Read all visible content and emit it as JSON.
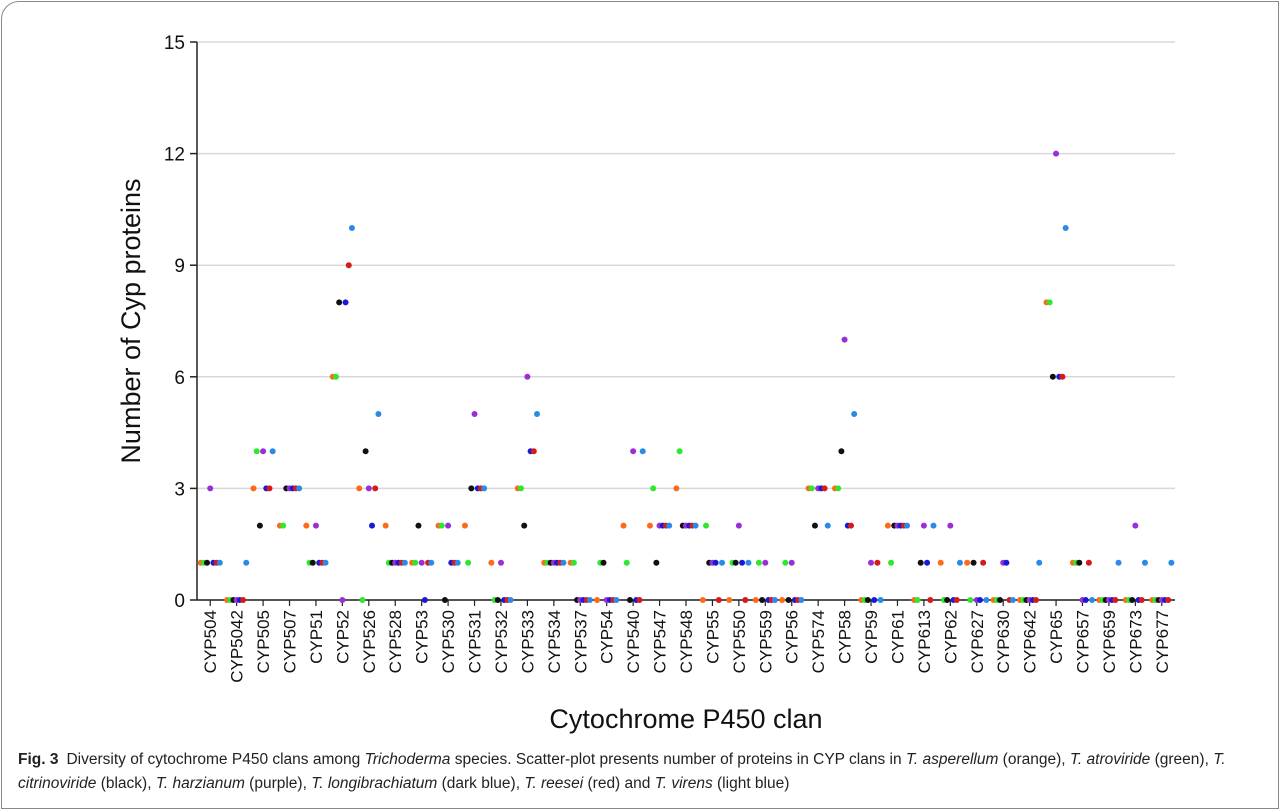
{
  "chart_data": {
    "type": "scatter",
    "ylabel": "Number of Cyp proteins",
    "xlabel": "Cytochrome P450 clan",
    "ylim": [
      0,
      15
    ],
    "yticks": [
      0,
      3,
      6,
      9,
      12,
      15
    ],
    "grid": true,
    "categories": [
      "CYP504",
      "CYP5042",
      "CYP505",
      "CYP507",
      "CYP51",
      "CYP52",
      "CYP526",
      "CYP528",
      "CYP53",
      "CYP530",
      "CYP531",
      "CYP532",
      "CYP533",
      "CYP534",
      "CYP537",
      "CYP54",
      "CYP540",
      "CYP547",
      "CYP548",
      "CYP55",
      "CYP550",
      "CYP559",
      "CYP56",
      "CYP574",
      "CYP58",
      "CYP59",
      "CYP61",
      "CYP613",
      "CYP62",
      "CYP627",
      "CYP630",
      "CYP642",
      "CYP65",
      "CYP657",
      "CYP659",
      "CYP673",
      "CYP677"
    ],
    "series": [
      {
        "name": "T. asperellum",
        "color": "#ff6a1a",
        "values": [
          1,
          0,
          3,
          2,
          2,
          6,
          3,
          2,
          1,
          2,
          2,
          1,
          3,
          1,
          1,
          0,
          2,
          2,
          3,
          0,
          0,
          0,
          0,
          3,
          3,
          0,
          2,
          0,
          1,
          1,
          0,
          0,
          8,
          1,
          0,
          0,
          0
        ]
      },
      {
        "name": "T. atroviride",
        "color": "#2ee82e",
        "values": [
          1,
          0,
          4,
          2,
          1,
          6,
          0,
          1,
          1,
          2,
          1,
          0,
          3,
          1,
          1,
          1,
          1,
          3,
          4,
          2,
          1,
          1,
          1,
          3,
          3,
          0,
          1,
          0,
          0,
          0,
          0,
          0,
          8,
          1,
          0,
          0,
          0
        ]
      },
      {
        "name": "T. citrinoviride",
        "color": "#111111",
        "values": [
          1,
          0,
          2,
          3,
          1,
          8,
          4,
          1,
          2,
          0,
          3,
          0,
          2,
          1,
          0,
          1,
          0,
          1,
          2,
          1,
          1,
          0,
          0,
          2,
          4,
          0,
          2,
          1,
          0,
          1,
          0,
          0,
          6,
          1,
          0,
          0,
          0
        ]
      },
      {
        "name": "T. harzianum",
        "color": "#9b2fd6",
        "values": [
          3,
          0,
          4,
          3,
          2,
          0,
          3,
          1,
          1,
          2,
          5,
          1,
          6,
          1,
          0,
          0,
          4,
          2,
          2,
          1,
          2,
          1,
          1,
          3,
          7,
          1,
          2,
          2,
          2,
          0,
          1,
          0,
          12,
          0,
          0,
          2,
          0
        ]
      },
      {
        "name": "T. longibrachiatum",
        "color": "#1a1ad6",
        "values": [
          1,
          0,
          3,
          3,
          1,
          8,
          2,
          1,
          0,
          1,
          3,
          0,
          4,
          1,
          0,
          0,
          0,
          2,
          2,
          1,
          1,
          0,
          0,
          3,
          2,
          0,
          2,
          1,
          0,
          0,
          1,
          0,
          6,
          0,
          0,
          0,
          0
        ]
      },
      {
        "name": "T. reesei",
        "color": "#d61a1a",
        "values": [
          1,
          0,
          3,
          3,
          1,
          9,
          3,
          1,
          1,
          1,
          3,
          0,
          4,
          1,
          0,
          0,
          0,
          2,
          2,
          0,
          0,
          0,
          0,
          3,
          2,
          1,
          2,
          0,
          0,
          1,
          0,
          0,
          6,
          1,
          0,
          0,
          0
        ]
      },
      {
        "name": "T. virens",
        "color": "#2a8ae8",
        "values": [
          1,
          1,
          4,
          3,
          1,
          10,
          5,
          1,
          1,
          1,
          3,
          0,
          5,
          1,
          0,
          0,
          4,
          2,
          2,
          1,
          1,
          0,
          0,
          2,
          5,
          0,
          2,
          2,
          1,
          0,
          0,
          1,
          10,
          0,
          1,
          1,
          1
        ]
      }
    ]
  },
  "caption": {
    "label": "Fig. 3",
    "parts": [
      {
        "text": "Diversity of cytochrome P450 clans among ",
        "italic": false
      },
      {
        "text": "Trichoderma",
        "italic": true
      },
      {
        "text": " species. Scatter-plot presents number of proteins in CYP clans in ",
        "italic": false
      },
      {
        "text": "T. asperellum",
        "italic": true
      },
      {
        "text": " (orange), ",
        "italic": false
      },
      {
        "text": "T. atroviride",
        "italic": true
      },
      {
        "text": " (green), ",
        "italic": false
      },
      {
        "text": "T. citrinoviride",
        "italic": true
      },
      {
        "text": " (black), ",
        "italic": false
      },
      {
        "text": "T. harzianum",
        "italic": true
      },
      {
        "text": " (purple), ",
        "italic": false
      },
      {
        "text": "T. longibrachiatum",
        "italic": true
      },
      {
        "text": " (dark blue), ",
        "italic": false
      },
      {
        "text": "T. reesei",
        "italic": true
      },
      {
        "text": " (red) and ",
        "italic": false
      },
      {
        "text": "T. virens",
        "italic": true
      },
      {
        "text": " (light blue)",
        "italic": false
      }
    ]
  }
}
